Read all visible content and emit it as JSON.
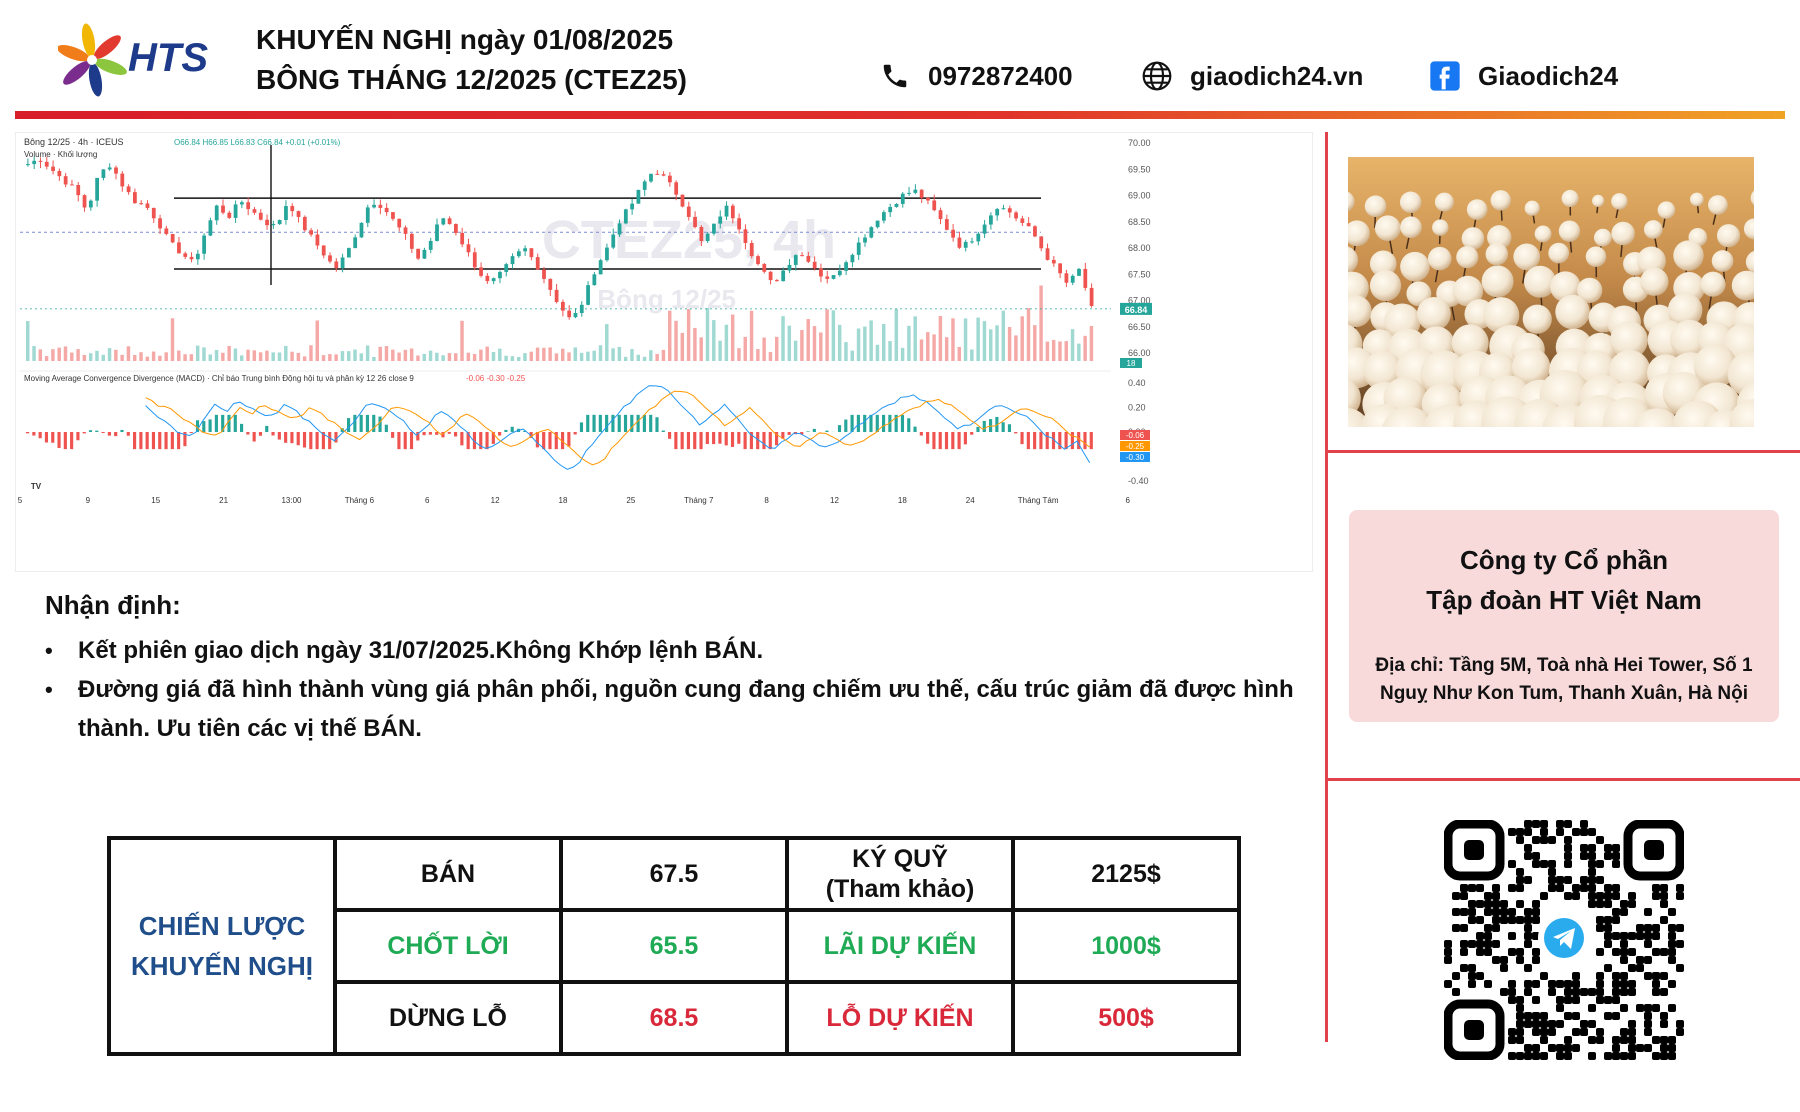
{
  "header": {
    "logo_text": "HTS",
    "title_line1": "KHUYẾN NGHỊ ngày 01/08/2025",
    "title_line2": "BÔNG THÁNG 12/2025 (CTEZ25)",
    "phone": "0972872400",
    "website": "giaodich24.vn",
    "facebook": "Giaodich24",
    "icons": [
      "phone-icon",
      "globe-icon",
      "facebook-icon"
    ]
  },
  "chart_data": {
    "type": "candlestick",
    "symbol_header": "Bông 12/25 · 4h · ICEUS",
    "ohlc_header": "O66.84 H66.85 L66.83 C66.84 +0.01 (+0.01%)",
    "volume_label": "Volume · Khối lượng",
    "volume_value": "18",
    "watermark_title": "CTEZ25, 4h",
    "watermark_sub": "Bông 12/25",
    "ylim": [
      66.0,
      70.0
    ],
    "yticks": [
      "70.00",
      "69.50",
      "69.00",
      "68.50",
      "68.00",
      "67.50",
      "67.00",
      "66.50",
      "66.00"
    ],
    "last_price_label": "66.84",
    "xticks": [
      "5",
      "9",
      "15",
      "21",
      "13:00",
      "Tháng 6",
      "6",
      "12",
      "18",
      "25",
      "Tháng 7",
      "8",
      "12",
      "18",
      "24",
      "Tháng Tám",
      "6"
    ],
    "horizontal_levels": [
      68.95,
      67.6
    ],
    "dotted_level": 68.3,
    "close_path": [
      69.6,
      69.7,
      69.5,
      69.3,
      69.1,
      68.7,
      69.4,
      69.6,
      69.2,
      68.9,
      68.8,
      68.5,
      68.1,
      67.9,
      67.7,
      68.3,
      68.8,
      68.6,
      68.9,
      68.7,
      68.5,
      68.4,
      68.9,
      68.5,
      68.2,
      67.9,
      67.6,
      67.9,
      68.4,
      68.9,
      68.8,
      68.5,
      68.2,
      67.8,
      68.1,
      68.6,
      68.4,
      68.0,
      67.6,
      67.3,
      67.5,
      67.8,
      68.0,
      67.7,
      67.3,
      66.9,
      66.6,
      67.0,
      67.6,
      68.0,
      68.5,
      68.8,
      69.2,
      69.5,
      69.3,
      69.0,
      68.6,
      68.1,
      68.4,
      68.8,
      68.5,
      68.0,
      67.6,
      67.3,
      67.6,
      67.9,
      67.8,
      67.5,
      67.4,
      67.7,
      68.0,
      68.3,
      68.6,
      68.8,
      69.0,
      69.1,
      68.9,
      68.6,
      68.3,
      68.0,
      68.2,
      68.5,
      68.8,
      68.7,
      68.5,
      68.3,
      67.9,
      67.6,
      67.3,
      67.6,
      66.84
    ],
    "macd_label": "Moving Average Convergence Divergence (MACD) · Chỉ báo Trung bình Động hội tụ và phân kỳ 12 26 close 9",
    "macd_values_text": "-0.06 -0.30 -0.25",
    "macd_yticks": [
      "0.40",
      "0.20",
      "0.00",
      "-0.20",
      "-0.40"
    ],
    "macd_labels": [
      "-0.06",
      "-0.25",
      "-0.30"
    ]
  },
  "analysis": {
    "title": "Nhận định:",
    "bullets": [
      "Kết phiên giao dịch ngày 31/07/2025.Không Khớp lệnh BÁN.",
      "Đường giá đã hình thành vùng giá phân phối, nguồn cung đang chiếm ưu thế, cấu trúc giảm đã được hình thành. Ưu tiên các vị thế BÁN."
    ]
  },
  "strategy": {
    "label_line1": "CHIẾN LƯỢC",
    "label_line2": "KHUYẾN NGHỊ",
    "rows": [
      {
        "action": "BÁN",
        "price": "67.5",
        "metric_line1": "KÝ QUỸ",
        "metric_line2": "(Tham khảo)",
        "amount": "2125$"
      },
      {
        "action": "CHỐT LỜI",
        "price": "65.5",
        "metric_line1": "LÃI DỰ KIẾN",
        "metric_line2": "",
        "amount": "1000$"
      },
      {
        "action": "DỪNG LỖ",
        "price": "68.5",
        "metric_line1": "LỖ DỰ KIẾN",
        "metric_line2": "",
        "amount": "500$"
      }
    ]
  },
  "company": {
    "name_line1": "Công ty Cổ phần",
    "name_line2": "Tập đoàn HT Việt Nam",
    "address_line1": "Địa chỉ: Tầng 5M, Toà nhà Hei Tower, Số 1",
    "address_line2": "Nguỵ Như Kon Tum, Thanh Xuân, Hà Nội"
  },
  "colors": {
    "brand_red": "#e0414a",
    "accent_blue": "#1f4e8a",
    "profit_green": "#1faa55",
    "loss_red": "#d8283a",
    "candle_up": "#26a69a",
    "candle_down": "#ef5350"
  }
}
